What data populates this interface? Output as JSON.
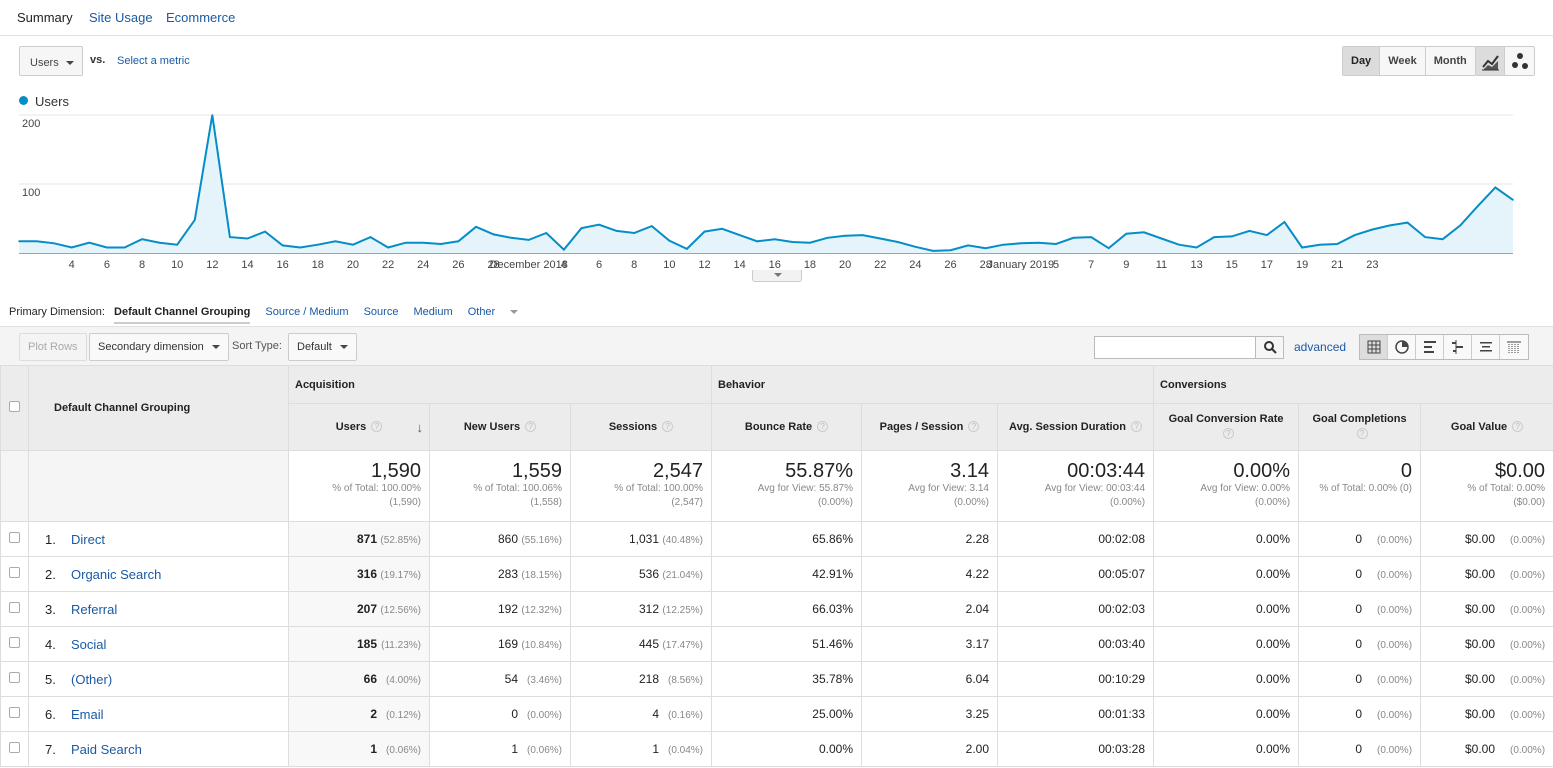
{
  "tabs": [
    {
      "label": "Summary",
      "active": true
    },
    {
      "label": "Site Usage",
      "active": false
    },
    {
      "label": "Ecommerce",
      "active": false
    }
  ],
  "metric_select": "Users",
  "vs_label": "vs.",
  "select_metric_label": "Select a metric",
  "period_buttons": [
    {
      "label": "Day",
      "active": true
    },
    {
      "label": "Week",
      "active": false
    },
    {
      "label": "Month",
      "active": false
    }
  ],
  "chart_view_buttons": [
    {
      "icon": "line-chart-icon",
      "active": true
    },
    {
      "icon": "motion-chart-icon",
      "active": false
    }
  ],
  "chart_data": {
    "type": "area",
    "series": [
      {
        "name": "Users",
        "color": "#058dc7"
      }
    ],
    "x_tick_labels": [
      "4",
      "6",
      "8",
      "10",
      "12",
      "14",
      "16",
      "18",
      "20",
      "22",
      "24",
      "26",
      "28",
      "December 2018",
      "4",
      "6",
      "8",
      "10",
      "12",
      "14",
      "16",
      "18",
      "20",
      "22",
      "24",
      "26",
      "28",
      "January 2019",
      "5",
      "7",
      "9",
      "11",
      "13",
      "15",
      "17",
      "19",
      "21",
      "23"
    ],
    "y_ticks": [
      100,
      200
    ],
    "ylim": [
      0,
      200
    ],
    "grid": true,
    "values": [
      17,
      17,
      14,
      8,
      15,
      8,
      8,
      20,
      15,
      12,
      48,
      200,
      23,
      21,
      31,
      11,
      8,
      12,
      17,
      12,
      23,
      8,
      15,
      15,
      13,
      17,
      38,
      27,
      22,
      19,
      29,
      5,
      36,
      41,
      32,
      29,
      39,
      18,
      6,
      31,
      35,
      26,
      17,
      20,
      16,
      15,
      22,
      25,
      26,
      21,
      16,
      9,
      3,
      4,
      11,
      7,
      12,
      14,
      15,
      13,
      22,
      23,
      7,
      28,
      30,
      21,
      12,
      8,
      23,
      24,
      32,
      26,
      45,
      8,
      12,
      13,
      26,
      34,
      40,
      44,
      23,
      20,
      40,
      68,
      95,
      77
    ]
  },
  "primary_dimension": {
    "label": "Primary Dimension:",
    "options": [
      {
        "label": "Default Channel Grouping",
        "active": true
      },
      {
        "label": "Source / Medium",
        "active": false
      },
      {
        "label": "Source",
        "active": false
      },
      {
        "label": "Medium",
        "active": false
      },
      {
        "label": "Other",
        "active": false
      }
    ]
  },
  "toolbar": {
    "plot_rows": "Plot Rows",
    "secondary_dimension": "Secondary dimension",
    "sort_type_label": "Sort Type:",
    "sort_type_value": "Default",
    "search_value": "",
    "advanced": "advanced",
    "view_icons": [
      "data-table-icon",
      "pie-chart-icon",
      "bar-chart-icon",
      "comparison-icon",
      "term-cloud-icon",
      "pivot-table-icon"
    ]
  },
  "table": {
    "dimension_header": "Default Channel Grouping",
    "groups": [
      "Acquisition",
      "Behavior",
      "Conversions"
    ],
    "columns": [
      "Users",
      "New Users",
      "Sessions",
      "Bounce Rate",
      "Pages / Session",
      "Avg. Session Duration",
      "Goal Conversion Rate",
      "Goal Completions",
      "Goal Value"
    ],
    "totals": [
      {
        "value": "1,590",
        "sub1": "% of Total: 100.00%",
        "sub2": "(1,590)"
      },
      {
        "value": "1,559",
        "sub1": "% of Total: 100.06%",
        "sub2": "(1,558)"
      },
      {
        "value": "2,547",
        "sub1": "% of Total: 100.00%",
        "sub2": "(2,547)"
      },
      {
        "value": "55.87%",
        "sub1": "Avg for View: 55.87%",
        "sub2": "(0.00%)"
      },
      {
        "value": "3.14",
        "sub1": "Avg for View: 3.14",
        "sub2": "(0.00%)"
      },
      {
        "value": "00:03:44",
        "sub1": "Avg for View: 00:03:44",
        "sub2": "(0.00%)"
      },
      {
        "value": "0.00%",
        "sub1": "Avg for View: 0.00%",
        "sub2": "(0.00%)"
      },
      {
        "value": "0",
        "sub1": "% of Total: 0.00% (0)",
        "sub2": ""
      },
      {
        "value": "$0.00",
        "sub1": "% of Total: 0.00%",
        "sub2": "($0.00)"
      }
    ],
    "rows": [
      {
        "idx": "1.",
        "name": "Direct",
        "users": "871",
        "users_pct": "(52.85%)",
        "new_users": "860",
        "new_users_pct": "(55.16%)",
        "sessions": "1,031",
        "sessions_pct": "(40.48%)",
        "bounce": "65.86%",
        "pages": "2.28",
        "duration": "00:02:08",
        "conv_rate": "0.00%",
        "completions": "0",
        "completions_pct": "(0.00%)",
        "value": "$0.00",
        "value_pct": "(0.00%)"
      },
      {
        "idx": "2.",
        "name": "Organic Search",
        "users": "316",
        "users_pct": "(19.17%)",
        "new_users": "283",
        "new_users_pct": "(18.15%)",
        "sessions": "536",
        "sessions_pct": "(21.04%)",
        "bounce": "42.91%",
        "pages": "4.22",
        "duration": "00:05:07",
        "conv_rate": "0.00%",
        "completions": "0",
        "completions_pct": "(0.00%)",
        "value": "$0.00",
        "value_pct": "(0.00%)"
      },
      {
        "idx": "3.",
        "name": "Referral",
        "users": "207",
        "users_pct": "(12.56%)",
        "new_users": "192",
        "new_users_pct": "(12.32%)",
        "sessions": "312",
        "sessions_pct": "(12.25%)",
        "bounce": "66.03%",
        "pages": "2.04",
        "duration": "00:02:03",
        "conv_rate": "0.00%",
        "completions": "0",
        "completions_pct": "(0.00%)",
        "value": "$0.00",
        "value_pct": "(0.00%)"
      },
      {
        "idx": "4.",
        "name": "Social",
        "users": "185",
        "users_pct": "(11.23%)",
        "new_users": "169",
        "new_users_pct": "(10.84%)",
        "sessions": "445",
        "sessions_pct": "(17.47%)",
        "bounce": "51.46%",
        "pages": "3.17",
        "duration": "00:03:40",
        "conv_rate": "0.00%",
        "completions": "0",
        "completions_pct": "(0.00%)",
        "value": "$0.00",
        "value_pct": "(0.00%)"
      },
      {
        "idx": "5.",
        "name": "(Other)",
        "users": "66",
        "users_pct": "(4.00%)",
        "new_users": "54",
        "new_users_pct": "(3.46%)",
        "sessions": "218",
        "sessions_pct": "(8.56%)",
        "bounce": "35.78%",
        "pages": "6.04",
        "duration": "00:10:29",
        "conv_rate": "0.00%",
        "completions": "0",
        "completions_pct": "(0.00%)",
        "value": "$0.00",
        "value_pct": "(0.00%)"
      },
      {
        "idx": "6.",
        "name": "Email",
        "users": "2",
        "users_pct": "(0.12%)",
        "new_users": "0",
        "new_users_pct": "(0.00%)",
        "sessions": "4",
        "sessions_pct": "(0.16%)",
        "bounce": "25.00%",
        "pages": "3.25",
        "duration": "00:01:33",
        "conv_rate": "0.00%",
        "completions": "0",
        "completions_pct": "(0.00%)",
        "value": "$0.00",
        "value_pct": "(0.00%)"
      },
      {
        "idx": "7.",
        "name": "Paid Search",
        "users": "1",
        "users_pct": "(0.06%)",
        "new_users": "1",
        "new_users_pct": "(0.06%)",
        "sessions": "1",
        "sessions_pct": "(0.04%)",
        "bounce": "0.00%",
        "pages": "2.00",
        "duration": "00:03:28",
        "conv_rate": "0.00%",
        "completions": "0",
        "completions_pct": "(0.00%)",
        "value": "$0.00",
        "value_pct": "(0.00%)"
      }
    ]
  },
  "colors": {
    "accent": "#058dc7",
    "link": "#1a5aa3",
    "area_fill": "#e5f4fa"
  }
}
